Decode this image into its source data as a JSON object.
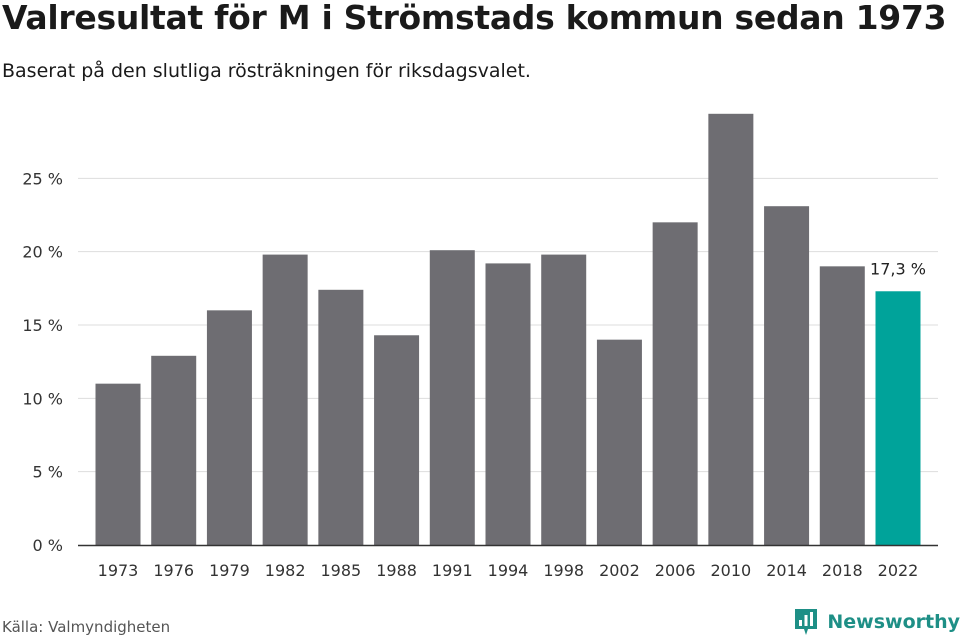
{
  "title": "Valresultat för M i Strömstads kommun sedan 1973",
  "subtitle": "Baserat på den slutliga rösträkningen för riksdagsvalet.",
  "source": "Källa: Valmyndigheten",
  "brand": "Newsworthy",
  "colors": {
    "bar": "#6e6d72",
    "highlight": "#00a39a",
    "grid": "#dddddd",
    "brand": "#1e8f86"
  },
  "chart_data": {
    "type": "bar",
    "categories": [
      "1973",
      "1976",
      "1979",
      "1982",
      "1985",
      "1988",
      "1991",
      "1994",
      "1998",
      "2002",
      "2006",
      "2010",
      "2014",
      "2018",
      "2022"
    ],
    "values": [
      11.0,
      12.9,
      16.0,
      19.8,
      17.4,
      14.3,
      20.1,
      19.2,
      19.8,
      14.0,
      22.0,
      29.4,
      23.1,
      19.0,
      17.3
    ],
    "highlight_index": 14,
    "data_labels": {
      "14": "17,3 %"
    },
    "ylim": [
      0,
      30
    ],
    "yticks": [
      0,
      5,
      10,
      15,
      20,
      25
    ],
    "ytick_labels": [
      "0 %",
      "5 %",
      "10 %",
      "15 %",
      "20 %",
      "25 %"
    ],
    "grid": true
  }
}
